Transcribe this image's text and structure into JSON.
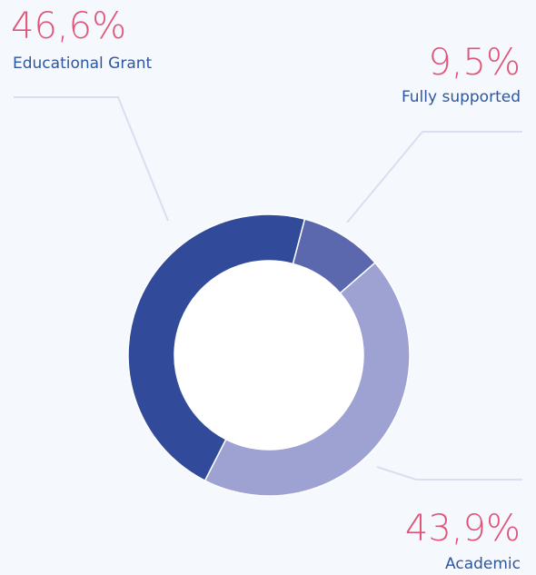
{
  "chart_data": {
    "type": "donut",
    "categories": [
      "Educational Grant",
      "Fully supported",
      "Academic"
    ],
    "values": [
      46.6,
      9.5,
      43.9
    ],
    "value_labels": [
      "46,6%",
      "9,5%",
      "43,9%"
    ],
    "colors": [
      "#314a9a",
      "#5c68ae",
      "#9da2d2"
    ]
  }
}
